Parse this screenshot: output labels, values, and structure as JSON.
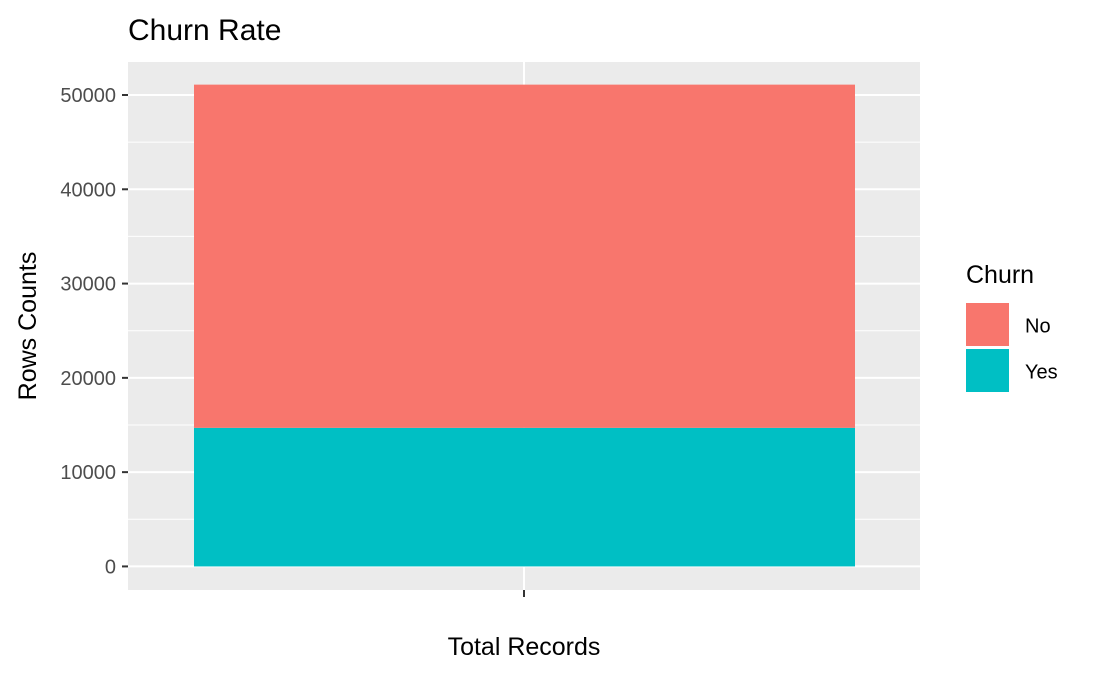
{
  "chart_data": {
    "type": "bar",
    "stacked": true,
    "title": "Churn Rate",
    "xlabel": "Total Records",
    "ylabel": "Rows Counts",
    "categories": [
      ""
    ],
    "series": [
      {
        "name": "No",
        "values": [
          36400
        ],
        "color": "#F8766D"
      },
      {
        "name": "Yes",
        "values": [
          14700
        ],
        "color": "#00BFC4"
      }
    ],
    "ylim": [
      -2500,
      53500
    ],
    "yticks": [
      0,
      10000,
      20000,
      30000,
      40000,
      50000
    ],
    "ytick_labels": [
      "0",
      "10000",
      "20000",
      "30000",
      "40000",
      "50000"
    ],
    "grid": true,
    "panel_background": "#EBEBEB",
    "grid_color": "#FFFFFF",
    "legend": {
      "title": "Churn",
      "position": "right",
      "items": [
        "No",
        "Yes"
      ]
    }
  }
}
